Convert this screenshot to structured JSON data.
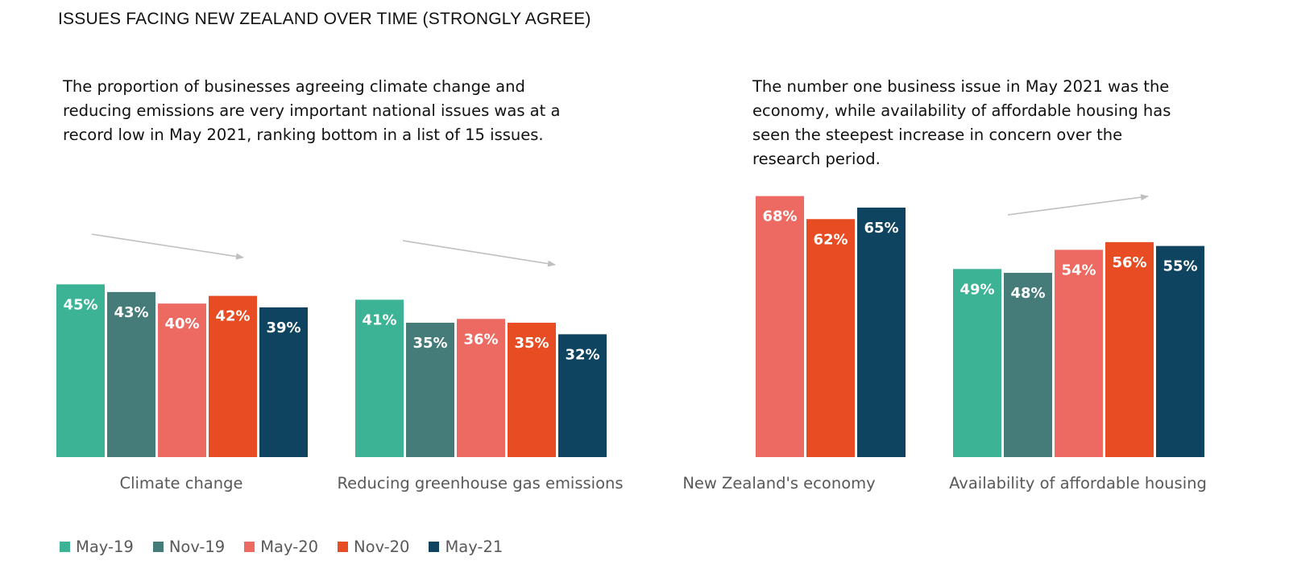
{
  "title": "ISSUES FACING NEW ZEALAND OVER TIME (STRONGLY AGREE)",
  "notes": {
    "left": [
      "The proportion of businesses agreeing climate change and",
      "reducing emissions are very important national issues was at a",
      "record low in May 2021, ranking bottom in a list of 15 issues."
    ],
    "right": [
      "The number one business issue in May 2021 was the",
      "economy, while availability of affordable housing has",
      "seen the steepest increase in concern over the",
      "research period."
    ]
  },
  "trend_arrows": [
    {
      "category": "Climate change",
      "direction": "down"
    },
    {
      "category": "Reducing greenhouse gas emissions",
      "direction": "down"
    },
    {
      "category": "Availability of affordable housing",
      "direction": "up"
    }
  ],
  "chart_data": {
    "type": "bar",
    "title": "ISSUES FACING NEW ZEALAND OVER TIME (STRONGLY AGREE)",
    "categories": [
      "Climate change",
      "Reducing greenhouse gas emissions",
      "New Zealand's economy",
      "Availability of affordable housing"
    ],
    "series": [
      {
        "name": "May-19",
        "color": "#3bb394",
        "values": [
          45,
          41,
          null,
          49
        ]
      },
      {
        "name": "Nov-19",
        "color": "#457b78",
        "values": [
          43,
          35,
          null,
          48
        ]
      },
      {
        "name": "May-20",
        "color": "#ec6a62",
        "values": [
          40,
          36,
          68,
          54
        ]
      },
      {
        "name": "Nov-20",
        "color": "#e84c23",
        "values": [
          42,
          35,
          62,
          56
        ]
      },
      {
        "name": "May-21",
        "color": "#0f4460",
        "values": [
          39,
          32,
          65,
          55
        ]
      }
    ],
    "value_suffix": "%",
    "ylim": [
      0,
      70
    ],
    "legend_position": "bottom-left",
    "grid": false
  }
}
